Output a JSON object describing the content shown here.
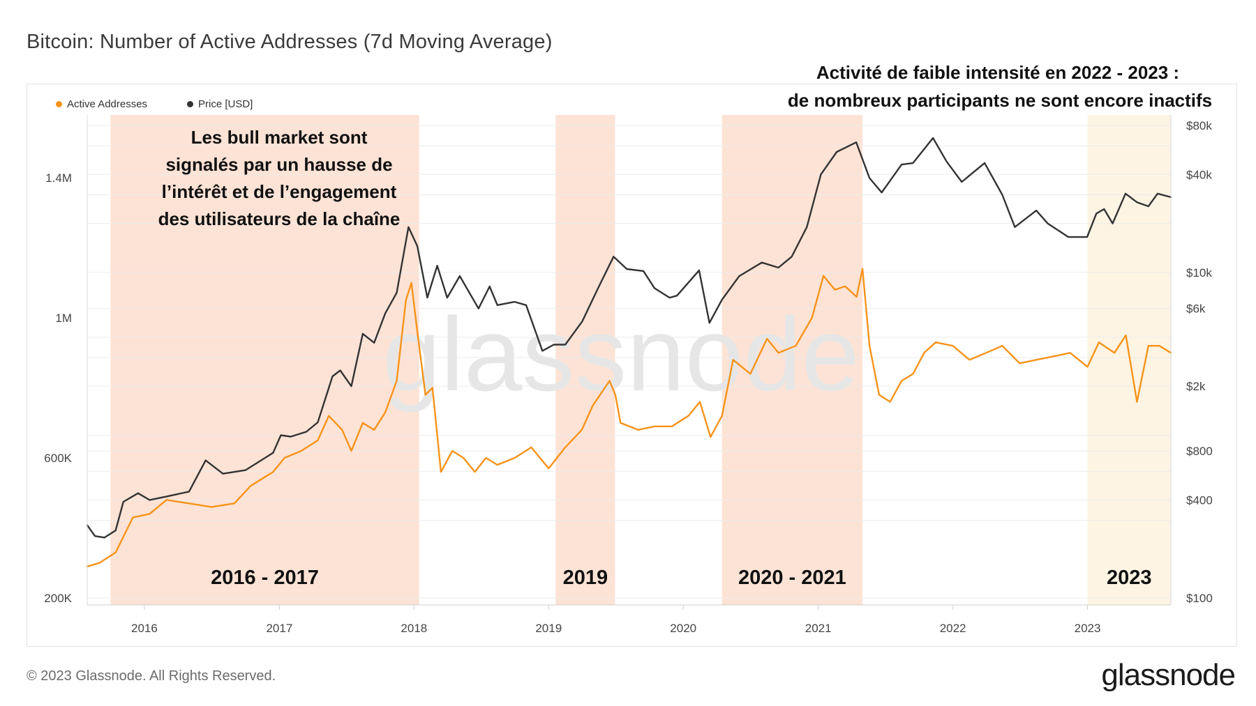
{
  "title": "Bitcoin: Number of Active Addresses (7d Moving Average)",
  "legend": [
    {
      "label": "Active Addresses",
      "color": "#f7931a"
    },
    {
      "label": "Price [USD]",
      "color": "#333333"
    }
  ],
  "footer": {
    "copyright": "© 2023 Glassnode. All Rights Reserved.",
    "brand": "glassnode"
  },
  "watermark": "glassnode",
  "annotations": {
    "bull_note": [
      "Les bull market sont",
      "signalés par un hausse de",
      "l’intérêt et de l’engagement",
      "des utilisateurs de la chaîne"
    ],
    "low_activity_note": [
      "Activité de faible intensité en 2022 - 2023 :",
      "de nombreux participants ne sont encore inactifs"
    ]
  },
  "chart_data": {
    "type": "line",
    "x_axis": {
      "ticks": [
        "2016",
        "2017",
        "2018",
        "2019",
        "2020",
        "2021",
        "2022",
        "2023"
      ],
      "range": [
        "2015-07-30",
        "2023-08-15"
      ]
    },
    "y_left": {
      "label": "Active Addresses",
      "ticks": [
        "200K",
        "600K",
        "1M",
        "1.4M"
      ],
      "tick_values": [
        200000,
        600000,
        1000000,
        1400000
      ],
      "range": [
        200000,
        1600000
      ]
    },
    "y_right": {
      "label": "Price [USD]",
      "scale": "log",
      "ticks": [
        "$100",
        "$400",
        "$800",
        "$2k",
        "$6k",
        "$10k",
        "$40k",
        "$80k"
      ],
      "tick_values": [
        100,
        400,
        800,
        2000,
        6000,
        10000,
        40000,
        80000
      ]
    },
    "highlight_periods": [
      {
        "label": "2016 - 2017",
        "start": "2015-10-01",
        "end": "2018-01-15",
        "color": "#fde3d5"
      },
      {
        "label": "2019",
        "start": "2019-01-20",
        "end": "2019-06-30",
        "color": "#fde3d5"
      },
      {
        "label": "2020 - 2021",
        "start": "2020-04-15",
        "end": "2021-05-01",
        "color": "#fde3d5"
      },
      {
        "label": "2023",
        "start": "2023-01-01",
        "end": "2023-08-15",
        "color": "#fdf4e3"
      }
    ],
    "series": [
      {
        "name": "Active Addresses",
        "color": "#f7931a",
        "axis": "left",
        "points": [
          [
            "2015-07-30",
            290000
          ],
          [
            "2015-09-01",
            300000
          ],
          [
            "2015-10-15",
            330000
          ],
          [
            "2015-12-01",
            430000
          ],
          [
            "2016-01-15",
            440000
          ],
          [
            "2016-03-01",
            480000
          ],
          [
            "2016-05-01",
            470000
          ],
          [
            "2016-07-01",
            460000
          ],
          [
            "2016-09-01",
            470000
          ],
          [
            "2016-10-15",
            520000
          ],
          [
            "2016-12-15",
            560000
          ],
          [
            "2017-01-15",
            600000
          ],
          [
            "2017-03-01",
            620000
          ],
          [
            "2017-04-15",
            650000
          ],
          [
            "2017-05-15",
            720000
          ],
          [
            "2017-06-20",
            680000
          ],
          [
            "2017-07-15",
            620000
          ],
          [
            "2017-08-15",
            700000
          ],
          [
            "2017-09-15",
            680000
          ],
          [
            "2017-10-15",
            730000
          ],
          [
            "2017-11-15",
            820000
          ],
          [
            "2017-12-10",
            1050000
          ],
          [
            "2017-12-25",
            1100000
          ],
          [
            "2018-01-10",
            960000
          ],
          [
            "2018-02-01",
            780000
          ],
          [
            "2018-02-20",
            800000
          ],
          [
            "2018-03-15",
            560000
          ],
          [
            "2018-04-15",
            620000
          ],
          [
            "2018-05-15",
            600000
          ],
          [
            "2018-06-15",
            560000
          ],
          [
            "2018-07-15",
            600000
          ],
          [
            "2018-08-15",
            580000
          ],
          [
            "2018-10-01",
            600000
          ],
          [
            "2018-11-15",
            630000
          ],
          [
            "2019-01-01",
            570000
          ],
          [
            "2019-02-15",
            630000
          ],
          [
            "2019-04-01",
            680000
          ],
          [
            "2019-05-01",
            750000
          ],
          [
            "2019-06-15",
            820000
          ],
          [
            "2019-07-01",
            780000
          ],
          [
            "2019-07-15",
            700000
          ],
          [
            "2019-09-01",
            680000
          ],
          [
            "2019-10-15",
            690000
          ],
          [
            "2019-12-01",
            690000
          ],
          [
            "2020-01-15",
            720000
          ],
          [
            "2020-02-15",
            760000
          ],
          [
            "2020-03-15",
            660000
          ],
          [
            "2020-04-15",
            720000
          ],
          [
            "2020-05-15",
            880000
          ],
          [
            "2020-07-01",
            840000
          ],
          [
            "2020-08-15",
            940000
          ],
          [
            "2020-09-15",
            900000
          ],
          [
            "2020-11-01",
            920000
          ],
          [
            "2020-12-15",
            1000000
          ],
          [
            "2021-01-15",
            1120000
          ],
          [
            "2021-02-15",
            1080000
          ],
          [
            "2021-03-15",
            1090000
          ],
          [
            "2021-04-15",
            1060000
          ],
          [
            "2021-05-01",
            1140000
          ],
          [
            "2021-05-20",
            920000
          ],
          [
            "2021-06-15",
            780000
          ],
          [
            "2021-07-15",
            760000
          ],
          [
            "2021-08-15",
            820000
          ],
          [
            "2021-09-15",
            840000
          ],
          [
            "2021-10-15",
            900000
          ],
          [
            "2021-11-15",
            930000
          ],
          [
            "2022-01-01",
            920000
          ],
          [
            "2022-02-15",
            880000
          ],
          [
            "2022-04-01",
            900000
          ],
          [
            "2022-05-15",
            920000
          ],
          [
            "2022-07-01",
            870000
          ],
          [
            "2022-08-15",
            880000
          ],
          [
            "2022-10-01",
            890000
          ],
          [
            "2022-11-15",
            900000
          ],
          [
            "2023-01-01",
            860000
          ],
          [
            "2023-02-01",
            930000
          ],
          [
            "2023-03-15",
            900000
          ],
          [
            "2023-04-15",
            950000
          ],
          [
            "2023-05-15",
            760000
          ],
          [
            "2023-06-15",
            920000
          ],
          [
            "2023-07-15",
            920000
          ],
          [
            "2023-08-15",
            900000
          ]
        ]
      },
      {
        "name": "Price [USD]",
        "color": "#333333",
        "axis": "right",
        "points": [
          [
            "2015-07-30",
            280
          ],
          [
            "2015-08-20",
            240
          ],
          [
            "2015-09-15",
            235
          ],
          [
            "2015-10-15",
            260
          ],
          [
            "2015-11-05",
            390
          ],
          [
            "2015-12-15",
            440
          ],
          [
            "2016-01-15",
            400
          ],
          [
            "2016-03-01",
            420
          ],
          [
            "2016-05-01",
            450
          ],
          [
            "2016-06-15",
            700
          ],
          [
            "2016-08-01",
            580
          ],
          [
            "2016-10-01",
            610
          ],
          [
            "2016-12-15",
            780
          ],
          [
            "2017-01-05",
            1000
          ],
          [
            "2017-02-01",
            980
          ],
          [
            "2017-03-15",
            1050
          ],
          [
            "2017-04-15",
            1200
          ],
          [
            "2017-05-25",
            2300
          ],
          [
            "2017-06-15",
            2500
          ],
          [
            "2017-07-15",
            2000
          ],
          [
            "2017-08-15",
            4200
          ],
          [
            "2017-09-15",
            3700
          ],
          [
            "2017-10-15",
            5600
          ],
          [
            "2017-11-15",
            7500
          ],
          [
            "2017-12-17",
            19000
          ],
          [
            "2018-01-10",
            14500
          ],
          [
            "2018-02-06",
            7000
          ],
          [
            "2018-03-05",
            11000
          ],
          [
            "2018-04-01",
            7000
          ],
          [
            "2018-05-05",
            9500
          ],
          [
            "2018-06-25",
            6000
          ],
          [
            "2018-07-25",
            8200
          ],
          [
            "2018-08-15",
            6300
          ],
          [
            "2018-10-01",
            6600
          ],
          [
            "2018-11-01",
            6300
          ],
          [
            "2018-12-15",
            3300
          ],
          [
            "2019-01-15",
            3600
          ],
          [
            "2019-02-15",
            3600
          ],
          [
            "2019-04-02",
            5000
          ],
          [
            "2019-05-15",
            8000
          ],
          [
            "2019-06-26",
            12500
          ],
          [
            "2019-08-01",
            10500
          ],
          [
            "2019-09-15",
            10200
          ],
          [
            "2019-10-15",
            8000
          ],
          [
            "2019-11-25",
            7000
          ],
          [
            "2019-12-15",
            7200
          ],
          [
            "2020-02-13",
            10300
          ],
          [
            "2020-03-12",
            4900
          ],
          [
            "2020-04-15",
            6800
          ],
          [
            "2020-06-01",
            9500
          ],
          [
            "2020-08-01",
            11500
          ],
          [
            "2020-09-15",
            10700
          ],
          [
            "2020-10-21",
            12500
          ],
          [
            "2020-12-01",
            19000
          ],
          [
            "2021-01-08",
            40000
          ],
          [
            "2021-02-20",
            55000
          ],
          [
            "2021-04-14",
            63000
          ],
          [
            "2021-05-20",
            38000
          ],
          [
            "2021-06-22",
            31000
          ],
          [
            "2021-08-15",
            46000
          ],
          [
            "2021-09-15",
            47000
          ],
          [
            "2021-11-08",
            67000
          ],
          [
            "2021-12-15",
            48000
          ],
          [
            "2022-01-25",
            36000
          ],
          [
            "2022-03-28",
            47000
          ],
          [
            "2022-05-15",
            30000
          ],
          [
            "2022-06-18",
            19000
          ],
          [
            "2022-08-15",
            24000
          ],
          [
            "2022-09-15",
            20000
          ],
          [
            "2022-11-10",
            16500
          ],
          [
            "2022-12-31",
            16500
          ],
          [
            "2023-01-25",
            23000
          ],
          [
            "2023-02-15",
            24500
          ],
          [
            "2023-03-10",
            20000
          ],
          [
            "2023-04-14",
            30500
          ],
          [
            "2023-05-15",
            27000
          ],
          [
            "2023-06-15",
            25500
          ],
          [
            "2023-07-10",
            30500
          ],
          [
            "2023-08-15",
            29000
          ]
        ]
      }
    ]
  }
}
